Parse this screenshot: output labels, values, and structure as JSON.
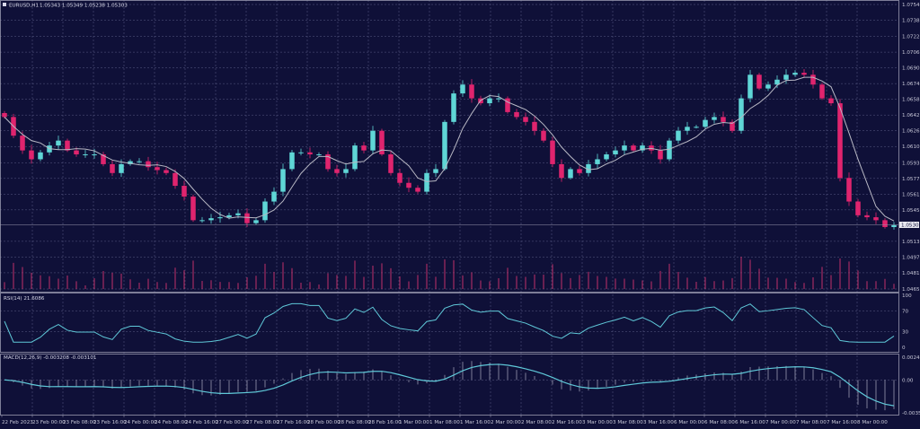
{
  "header": {
    "symbol": "EURUSD,H1",
    "ohlc": "1.05343 1.05349 1.05238 1.05303"
  },
  "colors": {
    "background": "#0f1038",
    "grid": "#5a5c86",
    "bull": "#5fd6d6",
    "bear": "#e0246e",
    "ma": "#b8b8c4",
    "indicator": "#5fc8d8",
    "volume": "#c0306a"
  },
  "chart_data": [
    {
      "type": "candlestick",
      "title": "EURUSD,H1 1.05343 1.05349 1.05238 1.05303",
      "ylim": [
        1.0465,
        1.07545
      ],
      "y_ticks": [
        "1.07545",
        "1.07385",
        "1.07220",
        "1.07060",
        "1.06900",
        "1.06740",
        "1.06580",
        "1.06420",
        "1.06260",
        "1.06100",
        "1.05935",
        "1.05775",
        "1.05615",
        "1.05455",
        "1.05135",
        "1.04975",
        "1.04815",
        "1.04650"
      ],
      "current_price": "1.05303",
      "x_ticks": [
        "22 Feb 2023",
        "23 Feb 00:00",
        "23 Feb 08:00",
        "23 Feb 16:00",
        "24 Feb 00:00",
        "24 Feb 08:00",
        "24 Feb 16:00",
        "27 Feb 00:00",
        "27 Feb 08:00",
        "27 Feb 16:00",
        "28 Feb 00:00",
        "28 Feb 08:00",
        "28 Feb 16:00",
        "1 Mar 00:00",
        "1 Mar 08:00",
        "1 Mar 16:00",
        "2 Mar 00:00",
        "2 Mar 08:00",
        "2 Mar 16:00",
        "3 Mar 00:00",
        "3 Mar 08:00",
        "3 Mar 16:00",
        "6 Mar 00:00",
        "6 Mar 08:00",
        "6 Mar 16:00",
        "7 Mar 00:00",
        "7 Mar 08:00",
        "7 Mar 16:00",
        "8 Mar 00:00"
      ],
      "closes": [
        1.064,
        1.0621,
        1.0606,
        1.0597,
        1.0604,
        1.0611,
        1.0616,
        1.0606,
        1.0602,
        1.0602,
        1.0602,
        1.0592,
        1.0583,
        1.0592,
        1.0595,
        1.0595,
        1.0589,
        1.0586,
        1.0583,
        1.057,
        1.0559,
        1.0535,
        1.0535,
        1.0537,
        1.0538,
        1.054,
        1.0542,
        1.0532,
        1.0535,
        1.0554,
        1.0564,
        1.0587,
        1.0604,
        1.0604,
        1.0602,
        1.0602,
        1.0587,
        1.0583,
        1.0587,
        1.0611,
        1.0606,
        1.0626,
        1.0602,
        1.0583,
        1.0573,
        1.0568,
        1.0564,
        1.0583,
        1.0587,
        1.0635,
        1.0664,
        1.0673,
        1.0659,
        1.0654,
        1.0659,
        1.0659,
        1.0645,
        1.064,
        1.0635,
        1.0626,
        1.0616,
        1.0592,
        1.0578,
        1.0587,
        1.0583,
        1.0592,
        1.0597,
        1.0602,
        1.0606,
        1.0611,
        1.0606,
        1.0611,
        1.0606,
        1.0597,
        1.0616,
        1.0626,
        1.063,
        1.063,
        1.0637,
        1.064,
        1.0635,
        1.0626,
        1.0659,
        1.0683,
        1.0669,
        1.0673,
        1.0678,
        1.0683,
        1.0685,
        1.0683,
        1.0673,
        1.0659,
        1.0654,
        1.0578,
        1.0554,
        1.054,
        1.0538,
        1.0535,
        1.0528,
        1.053
      ],
      "moving_average": "SMA"
    },
    {
      "type": "line",
      "title": "RSI(14) 21.6086",
      "ylim": [
        0,
        100
      ],
      "y_ticks": [
        "100",
        "70",
        "30",
        "0"
      ]
    },
    {
      "type": "line+bar",
      "title": "MACD(12,26,9) -0.003208 -0.003101",
      "ylim": [
        -0.003579,
        0.002463
      ],
      "y_ticks": [
        "0.002463",
        "0.00",
        "-0.003579"
      ]
    }
  ]
}
